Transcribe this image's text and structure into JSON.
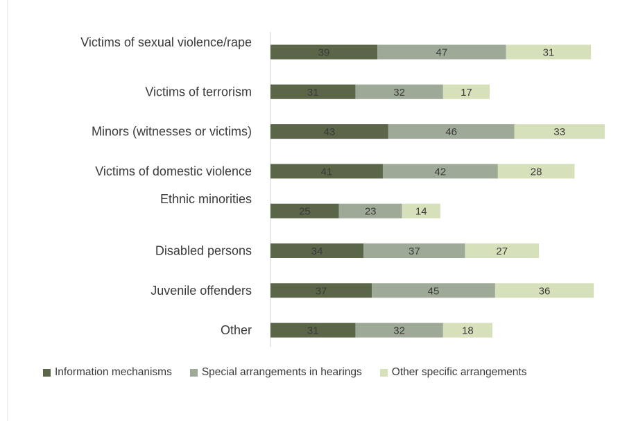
{
  "chart_data": {
    "type": "bar",
    "orientation": "horizontal",
    "stacked": true,
    "categories": [
      "Victims of sexual violence/rape",
      "Victims of terrorism",
      "Minors (witnesses or victims)",
      "Victims of domestic violence",
      "Ethnic minorities",
      "Disabled persons",
      "Juvenile offenders",
      "Other"
    ],
    "series": [
      {
        "name": "Information mechanisms",
        "color": "#5b6548",
        "values": [
          39,
          31,
          43,
          41,
          25,
          34,
          37,
          31
        ]
      },
      {
        "name": "Special arrangements in hearings",
        "color": "#9fa997",
        "values": [
          47,
          32,
          46,
          42,
          23,
          37,
          45,
          32
        ]
      },
      {
        "name": "Other specific arrangements",
        "color": "#d6e0bb",
        "values": [
          31,
          17,
          33,
          28,
          14,
          27,
          36,
          18
        ]
      }
    ],
    "data_labels": true,
    "legend_position": "bottom",
    "grid": false
  }
}
